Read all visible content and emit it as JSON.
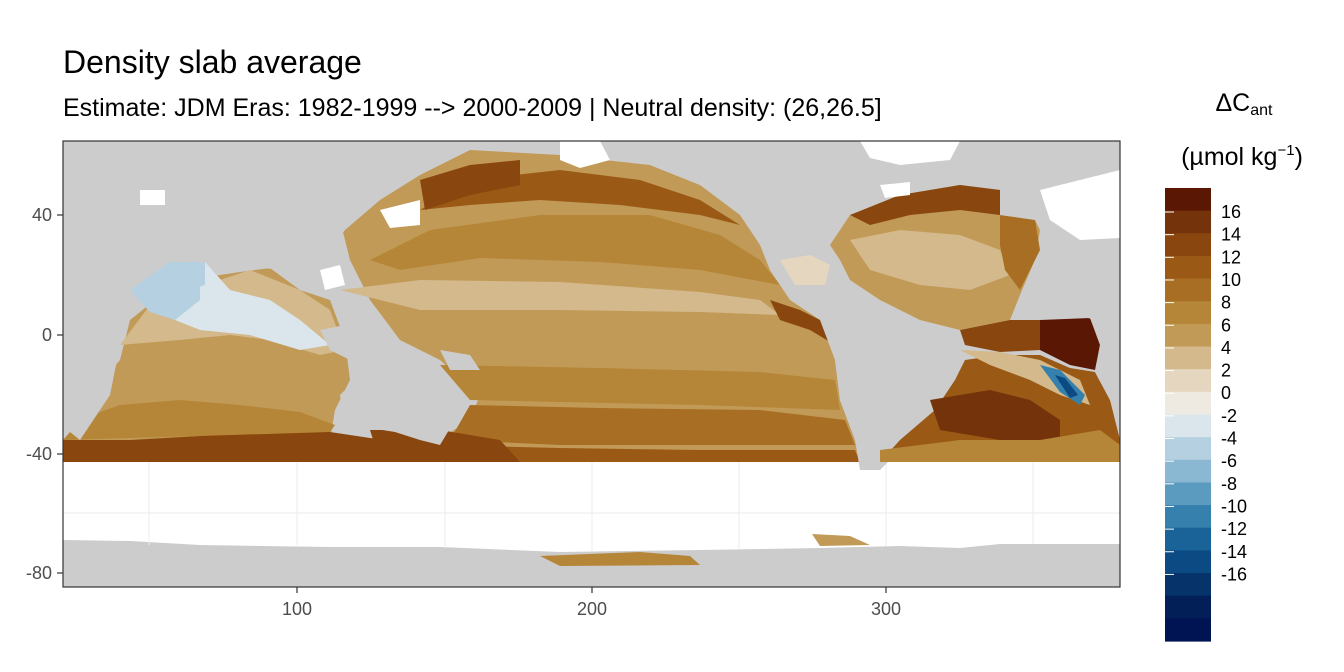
{
  "title": "Density slab average",
  "subtitle": "Estimate: JDM Eras: 1982-1999 --> 2000-2009 | Neutral density: (26,26.5]",
  "map": {
    "x_ticks": [
      "100",
      "200",
      "300"
    ],
    "y_ticks": [
      "40",
      "0",
      "-40",
      "-80"
    ],
    "land_color": "#cccccc",
    "no_data_color": "#ffffff"
  },
  "legend": {
    "title_symbol": "ΔC",
    "title_subscript": "ant",
    "unit_open": "(µmol kg",
    "unit_superscript": "−1",
    "unit_close": ")",
    "labels": [
      "16",
      "14",
      "12",
      "10",
      "8",
      "6",
      "4",
      "2",
      "0",
      "-2",
      "-4",
      "-6",
      "-8",
      "-10",
      "-12",
      "-14",
      "-16"
    ],
    "colors": [
      "#5a1704",
      "#74330a",
      "#89460e",
      "#9a5a15",
      "#a86f24",
      "#b68638",
      "#c29a57",
      "#d3b98b",
      "#e5d7bf",
      "#eeeae2",
      "#dbe6ec",
      "#b5d1e1",
      "#8ab8d2",
      "#5c9bc0",
      "#3580ad",
      "#1a6398",
      "#0b4a82",
      "#05336a",
      "#021f57",
      "#001353"
    ]
  }
}
